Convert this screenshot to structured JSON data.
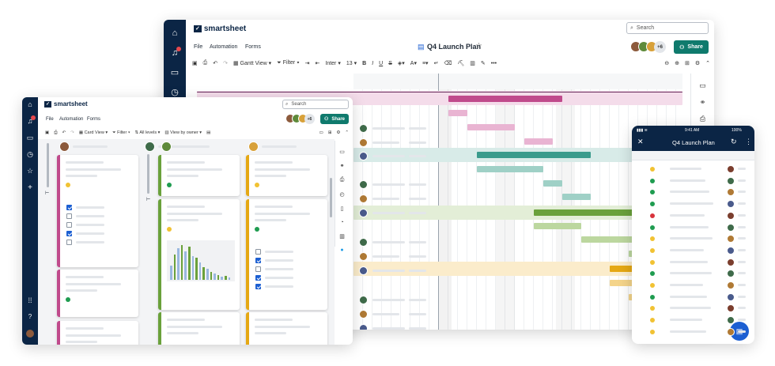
{
  "brand": "smartsheet",
  "desktop": {
    "search_placeholder": "Search",
    "menu": [
      "File",
      "Automation",
      "Forms"
    ],
    "doc_title": "Q4 Launch Plan",
    "collab_more": "+6",
    "share_label": "Share",
    "toolbar": {
      "view": "Gantt View",
      "filter": "Filter",
      "font": "Inter",
      "size": "13"
    }
  },
  "board": {
    "search_placeholder": "Search",
    "menu": [
      "File",
      "Automation",
      "Forms"
    ],
    "collab_more": "+6",
    "share_label": "Share",
    "toolbar": {
      "view": "Card View",
      "filter": "Filter",
      "levels": "All levels",
      "owner": "View by owner"
    }
  },
  "mobile": {
    "time": "9:41 AM",
    "battery": "100%",
    "title": "Q4 Launch Plan"
  },
  "colors": {
    "navy": "#0b2545",
    "teal": "#0f7a6d",
    "magenta": "#c04a8c",
    "sea": "#3a9b8c",
    "green": "#6aa13b",
    "amber": "#e5a814",
    "red": "#d8333b",
    "greenDot": "#1f9c50",
    "amberDot": "#f1c233"
  }
}
